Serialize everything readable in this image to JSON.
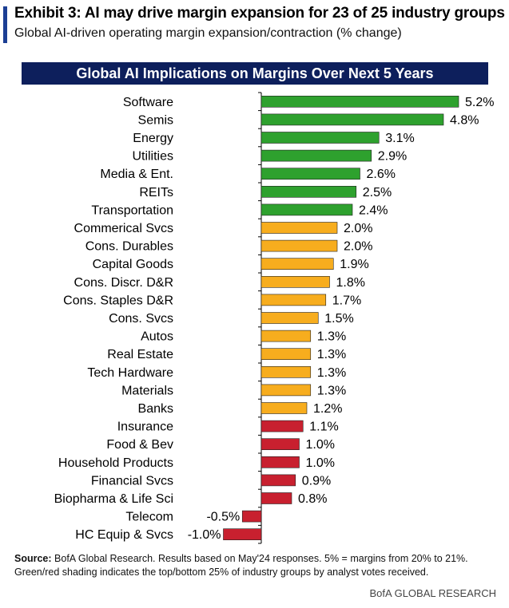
{
  "header": {
    "title": "Exhibit 3: AI may drive margin expansion for 23 of 25 industry groups",
    "subtitle": "Global AI-driven operating margin expansion/contraction (% change)"
  },
  "colors": {
    "accent_bar": "#1c3f94",
    "banner_bg": "#0d1f5c",
    "green": "#2ea12e",
    "orange": "#f7ad1e",
    "red": "#c8202f"
  },
  "chart_data": {
    "type": "bar",
    "orientation": "horizontal",
    "title": "Global AI Implications on Margins Over Next 5 Years",
    "categories": [
      "Software",
      "Semis",
      "Energy",
      "Utilities",
      "Media & Ent.",
      "REITs",
      "Transportation",
      "Commerical Svcs",
      "Cons. Durables",
      "Capital Goods",
      "Cons. Discr. D&R",
      "Cons. Staples D&R",
      "Cons. Svcs",
      "Autos",
      "Real Estate",
      "Tech Hardware",
      "Materials",
      "Banks",
      "Insurance",
      "Food & Bev",
      "Household Products",
      "Financial Svcs",
      "Biopharma & Life Sci",
      "Telecom",
      "HC Equip & Svcs"
    ],
    "values": [
      5.2,
      4.8,
      3.1,
      2.9,
      2.6,
      2.5,
      2.4,
      2.0,
      2.0,
      1.9,
      1.8,
      1.7,
      1.5,
      1.3,
      1.3,
      1.3,
      1.3,
      1.2,
      1.1,
      1.0,
      1.0,
      0.9,
      0.8,
      -0.5,
      -1.0
    ],
    "labels": [
      "5.2%",
      "4.8%",
      "3.1%",
      "2.9%",
      "2.6%",
      "2.5%",
      "2.4%",
      "2.0%",
      "2.0%",
      "1.9%",
      "1.8%",
      "1.7%",
      "1.5%",
      "1.3%",
      "1.3%",
      "1.3%",
      "1.3%",
      "1.2%",
      "1.1%",
      "1.0%",
      "1.0%",
      "0.9%",
      "0.8%",
      "-0.5%",
      "-1.0%"
    ],
    "groups": [
      "green",
      "green",
      "green",
      "green",
      "green",
      "green",
      "green",
      "orange",
      "orange",
      "orange",
      "orange",
      "orange",
      "orange",
      "orange",
      "orange",
      "orange",
      "orange",
      "orange",
      "red",
      "red",
      "red",
      "red",
      "red",
      "red",
      "red"
    ],
    "grid": false,
    "legend": "none"
  },
  "footer": {
    "source_label": "Source:",
    "source_text": "BofA Global Research. Results based on May'24 responses. 5% = margins from 20% to 21%.",
    "note": "Green/red shading indicates the top/bottom 25% of industry groups by analyst votes received.",
    "brand": "BofA GLOBAL RESEARCH"
  }
}
